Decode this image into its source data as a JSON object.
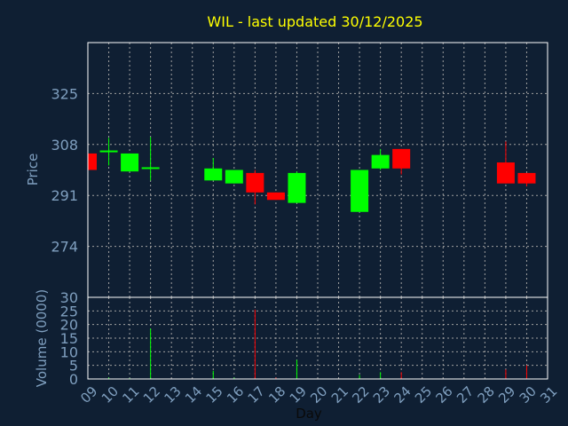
{
  "chart_data": {
    "title": "WIL - last updated 30/12/2025",
    "price_panel": {
      "type": "candlestick",
      "ylabel": "Price",
      "ylim": [
        257,
        342
      ],
      "yticks": [
        274,
        291,
        308,
        325
      ],
      "grid": true
    },
    "volume_panel": {
      "type": "bar",
      "ylabel": "Volume (0000)",
      "ylim": [
        0,
        30
      ],
      "yticks": [
        0,
        5,
        10,
        15,
        20,
        25,
        30
      ],
      "grid": true
    },
    "xlabel": "Day",
    "x_ticks": [
      "09",
      "10",
      "11",
      "12",
      "13",
      "14",
      "15",
      "16",
      "17",
      "18",
      "19",
      "20",
      "21",
      "22",
      "23",
      "24",
      "25",
      "26",
      "27",
      "28",
      "29",
      "30",
      "31"
    ],
    "colors": {
      "up": "#00ff00",
      "down": "#ff0000",
      "grid": "#a0a0a0",
      "axis_text": "#7f9fbf",
      "title": "#ffff00",
      "background": "#0f1f33"
    },
    "candles": [
      {
        "day": 9,
        "open": 305.0,
        "high": 305.0,
        "low": 299.5,
        "close": 299.5,
        "volume": 0
      },
      {
        "day": 10,
        "open": 305.4,
        "high": 310.2,
        "low": 301.0,
        "close": 306.0,
        "volume": 0.5
      },
      {
        "day": 11,
        "open": 299.0,
        "high": 305.0,
        "low": 299.0,
        "close": 305.0,
        "volume": 0.3
      },
      {
        "day": 12,
        "open": 300.0,
        "high": 310.5,
        "low": 296.0,
        "close": 300.4,
        "volume": 18.5
      },
      {
        "day": 15,
        "open": 296.0,
        "high": 303.5,
        "low": 296.0,
        "close": 300.0,
        "volume": 3.0
      },
      {
        "day": 16,
        "open": 295.0,
        "high": 299.5,
        "low": 295.0,
        "close": 299.5,
        "volume": 0.5
      },
      {
        "day": 17,
        "open": 298.5,
        "high": 299.5,
        "low": 288.0,
        "close": 292.0,
        "volume": 25.5
      },
      {
        "day": 18,
        "open": 292.0,
        "high": 292.0,
        "low": 289.5,
        "close": 289.5,
        "volume": 0.5
      },
      {
        "day": 19,
        "open": 288.5,
        "high": 299.0,
        "low": 288.5,
        "close": 298.5,
        "volume": 7.0
      },
      {
        "day": 22,
        "open": 285.5,
        "high": 299.5,
        "low": 285.5,
        "close": 299.5,
        "volume": 1.5
      },
      {
        "day": 23,
        "open": 300.0,
        "high": 306.5,
        "low": 299.5,
        "close": 304.5,
        "volume": 2.5
      },
      {
        "day": 24,
        "open": 306.5,
        "high": 306.5,
        "low": 298.0,
        "close": 300.0,
        "volume": 2.5
      },
      {
        "day": 29,
        "open": 302.0,
        "high": 309.0,
        "low": 295.0,
        "close": 295.0,
        "volume": 3.5
      },
      {
        "day": 30,
        "open": 298.5,
        "high": 298.5,
        "low": 294.0,
        "close": 295.0,
        "volume": 5.0
      }
    ]
  }
}
